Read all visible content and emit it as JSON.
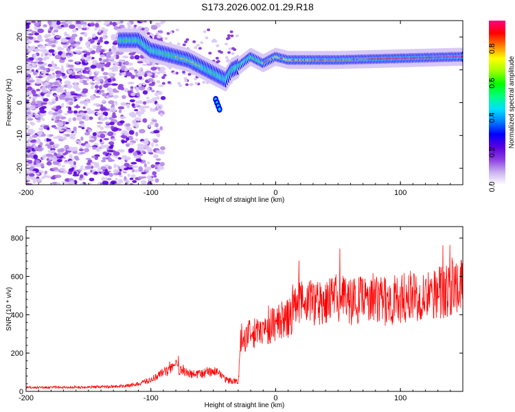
{
  "title": "S173.2026.002.01.29.R18",
  "chart_data": [
    {
      "type": "heatmap",
      "name": "spectrogram",
      "xlabel": "Height of straight line (km)",
      "ylabel": "Frequency (Hz)",
      "xlim": [
        -200,
        150
      ],
      "ylim": [
        -25,
        25
      ],
      "xticks": [
        -200,
        -100,
        0,
        100
      ],
      "yticks": [
        20,
        10,
        0,
        -10,
        -20
      ],
      "colorbar": {
        "label": "Normalized spectral amplitude",
        "range": [
          0.0,
          0.95
        ],
        "ticks": [
          "0.0",
          "0.2",
          "0.4",
          "0.6",
          "0.8"
        ],
        "tick_values": [
          0.0,
          0.2,
          0.4,
          0.6,
          0.8
        ],
        "colors": [
          "#ffffff",
          "#c9b0f0",
          "#8a3ee0",
          "#5a00e0",
          "#0000ff",
          "#0080ff",
          "#00e0ff",
          "#00ff80",
          "#00ff00",
          "#a0ff00",
          "#ffff00",
          "#ff8000",
          "#ff0000",
          "#ff0080"
        ]
      },
      "ridge_freq_curve": {
        "x": [
          -120,
          -110,
          -100,
          -90,
          -80,
          -70,
          -60,
          -50,
          -45,
          -40,
          -35,
          -30,
          -20,
          -10,
          0,
          10,
          20,
          50,
          100,
          150
        ],
        "y": [
          19,
          19,
          16,
          15,
          14,
          13,
          11,
          9,
          8,
          7,
          10,
          11,
          14,
          12,
          14,
          13,
          13,
          13,
          13.5,
          14
        ]
      },
      "branch_curve": {
        "x": [
          -48,
          -47,
          -46,
          -45
        ],
        "y": [
          1,
          0,
          -1,
          -2
        ]
      }
    },
    {
      "type": "line",
      "name": "snr",
      "xlabel": "Height of straight line (km)",
      "ylabel": "SNR (10 * v/v)",
      "xlim": [
        -200,
        150
      ],
      "ylim": [
        0,
        860
      ],
      "xticks": [
        -200,
        -100,
        0,
        100
      ],
      "yticks": [
        0,
        200,
        400,
        600,
        800
      ],
      "color": "#ff0000",
      "envelope": {
        "x": [
          -200,
          -150,
          -120,
          -110,
          -100,
          -90,
          -80,
          -70,
          -60,
          -50,
          -40,
          -30,
          -28,
          -20,
          -10,
          0,
          10,
          20,
          30,
          50,
          70,
          90,
          110,
          130,
          150
        ],
        "y": [
          20,
          22,
          28,
          40,
          60,
          100,
          130,
          90,
          90,
          110,
          60,
          50,
          270,
          300,
          310,
          360,
          380,
          460,
          470,
          480,
          470,
          470,
          500,
          520,
          540
        ]
      }
    }
  ]
}
